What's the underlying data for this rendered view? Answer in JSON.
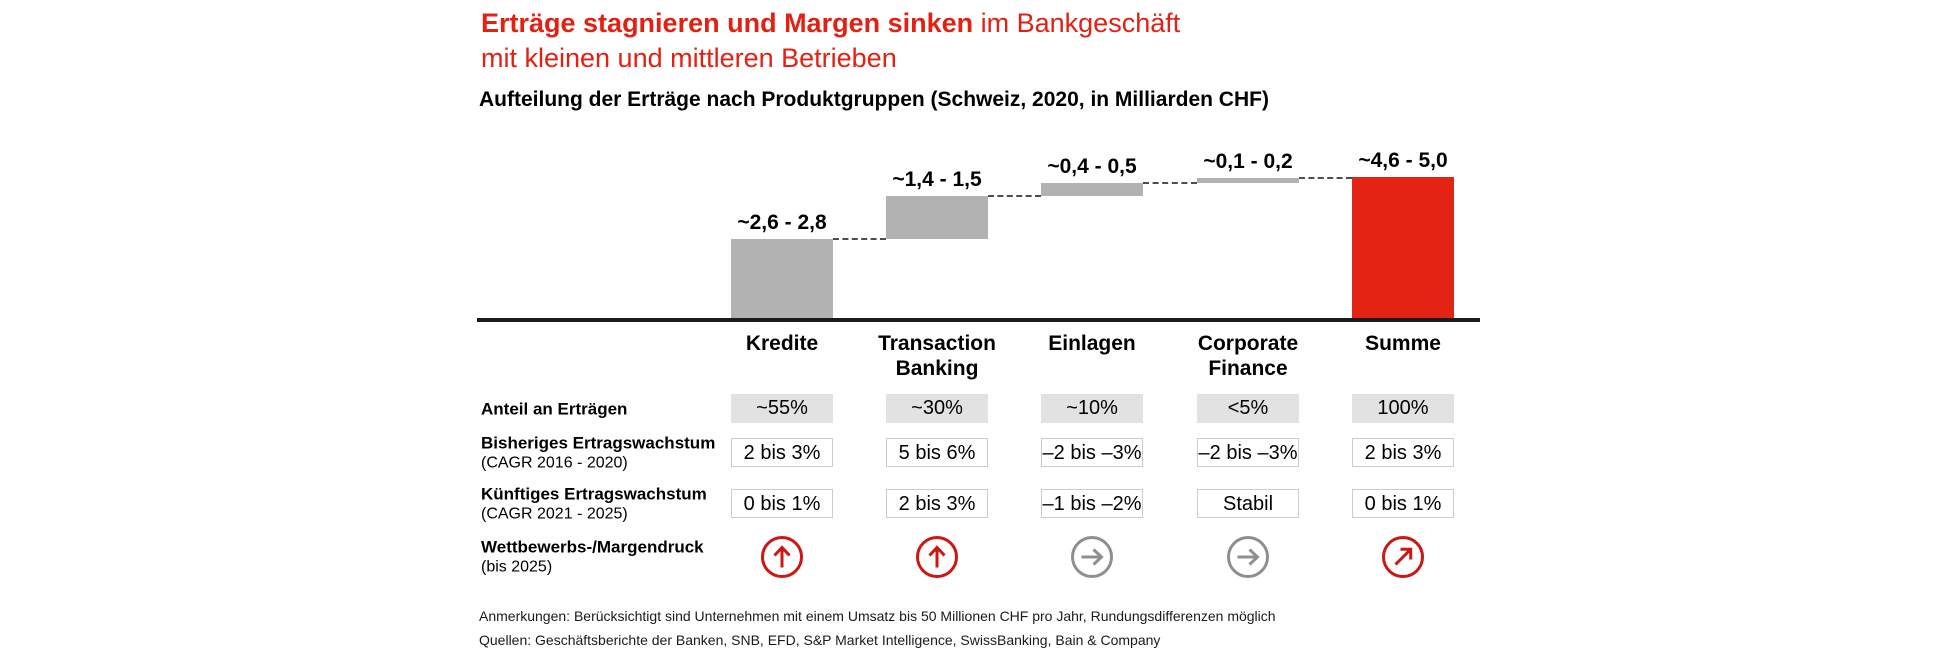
{
  "title": {
    "highlight": "Erträge stagnieren und Margen sinken",
    "rest": " im Bankgeschäft",
    "line2": "mit kleinen und mittleren Betrieben"
  },
  "subtitle": "Aufteilung der Erträge nach Produktgruppen (Schweiz, 2020, in Milliarden CHF)",
  "chart_data": {
    "type": "bar",
    "subtype": "waterfall",
    "title": "Aufteilung der Erträge nach Produktgruppen (Schweiz, 2020, in Milliarden CHF)",
    "unit": "Milliarden CHF",
    "categories": [
      "Kredite",
      "Transaction Banking",
      "Einlagen",
      "Corporate Finance",
      "Summe"
    ],
    "value_labels": [
      "~2,6 - 2,8",
      "~1,4 - 1,5",
      "~0,4 - 0,5",
      "~0,1 - 0,2",
      "~4,6 - 5,0"
    ],
    "ranges_low": [
      2.6,
      1.4,
      0.4,
      0.1,
      4.6
    ],
    "ranges_high": [
      2.8,
      1.5,
      0.5,
      0.2,
      5.0
    ],
    "bar_values_mid": [
      2.7,
      1.45,
      0.45,
      0.15,
      4.8
    ],
    "bar_starts": [
      0,
      2.7,
      4.15,
      4.6,
      0
    ],
    "bar_colors": [
      "#b2b2b2",
      "#b2b2b2",
      "#b2b2b2",
      "#b2b2b2",
      "#e32313"
    ],
    "is_total": [
      false,
      false,
      false,
      false,
      true
    ],
    "ylim": [
      0,
      5.0
    ],
    "grid": false,
    "legend": false
  },
  "table": {
    "rows": [
      {
        "label": "Anteil an Erträgen",
        "sublabel": "",
        "style": "gray",
        "values": [
          "~55%",
          "~30%",
          "~10%",
          "<5%",
          "100%"
        ]
      },
      {
        "label": "Bisheriges Ertragswachstum",
        "sublabel": "(CAGR 2016 - 2020)",
        "style": "outline",
        "values": [
          "2 bis 3%",
          "5 bis 6%",
          "–2 bis –3%",
          "–2 bis –3%",
          "2 bis 3%"
        ]
      },
      {
        "label": "Künftiges Ertragswachstum",
        "sublabel": "(CAGR 2021 - 2025)",
        "style": "outline",
        "values": [
          "0 bis 1%",
          "2 bis 3%",
          "–1 bis –2%",
          "Stabil",
          "0 bis 1%"
        ]
      },
      {
        "label": "Wettbewerbs-/Margendruck",
        "sublabel": "(bis 2025)",
        "style": "arrows",
        "arrows": [
          {
            "direction": "up",
            "color": "red"
          },
          {
            "direction": "up",
            "color": "red"
          },
          {
            "direction": "right",
            "color": "gray"
          },
          {
            "direction": "right",
            "color": "gray"
          },
          {
            "direction": "up-right",
            "color": "red"
          }
        ]
      }
    ]
  },
  "footnotes": [
    "Anmerkungen: Berücksichtigt sind Unternehmen mit einem Umsatz bis 50 Millionen CHF pro Jahr, Rundungsdifferenzen möglich",
    "Quellen: Geschäftsberichte der Banken, SNB, EFD, S&P Market Intelligence, SwissBanking, Bain & Company"
  ],
  "colors": {
    "accent_red": "#e32112",
    "bar_gray": "#b2b2b2",
    "box_gray_bg": "#e2e2e2",
    "box_border": "#cccccc",
    "arrow_red": "#cc1712",
    "arrow_gray": "#8f8f8f",
    "dash_gray": "#4d4d4d",
    "baseline_black": "#1a1a1a"
  }
}
